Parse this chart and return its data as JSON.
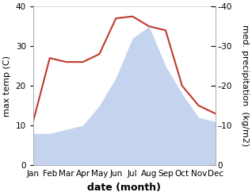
{
  "months": [
    "Jan",
    "Feb",
    "Mar",
    "Apr",
    "May",
    "Jun",
    "Jul",
    "Aug",
    "Sep",
    "Oct",
    "Nov",
    "Dec"
  ],
  "temperature": [
    11,
    27,
    26,
    26,
    28,
    37,
    37.5,
    35,
    34,
    20,
    15,
    13
  ],
  "precipitation": [
    8,
    8,
    9,
    10,
    15,
    22,
    32,
    35,
    25,
    18,
    12,
    11
  ],
  "temp_color": "#c0392b",
  "precip_color": "#c5d4ee",
  "ylim": [
    0,
    40
  ],
  "ylabel_left": "max temp (C)",
  "ylabel_right": "med. precipitation  (kg/m2)",
  "xlabel": "date (month)",
  "xlabel_fontsize": 9,
  "ylabel_fontsize": 8,
  "tick_fontsize": 7.5,
  "background_color": "#ffffff"
}
